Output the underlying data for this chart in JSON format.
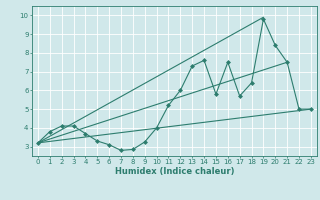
{
  "x": [
    0,
    1,
    2,
    3,
    4,
    5,
    6,
    7,
    8,
    9,
    10,
    11,
    12,
    13,
    14,
    15,
    16,
    17,
    18,
    19,
    20,
    21,
    22,
    23
  ],
  "y_zigzag": [
    3.2,
    3.8,
    4.1,
    4.1,
    3.7,
    3.3,
    3.1,
    2.8,
    2.85,
    3.25,
    4.0,
    5.2,
    6.0,
    7.3,
    7.6,
    5.8,
    7.5,
    5.7,
    6.4,
    9.8,
    8.4,
    7.5,
    5.0,
    5.0
  ],
  "trend1_x": [
    0,
    23
  ],
  "trend1_y": [
    3.2,
    5.0
  ],
  "trend2_x": [
    0,
    19
  ],
  "trend2_y": [
    3.2,
    9.9
  ],
  "trend3_x": [
    0,
    21
  ],
  "trend3_y": [
    3.2,
    7.5
  ],
  "line_color": "#2d7d6e",
  "bg_color": "#d0e8ea",
  "grid_color": "#b8d4d8",
  "xlabel": "Humidex (Indice chaleur)",
  "ylim": [
    2.5,
    10.5
  ],
  "xlim": [
    -0.5,
    23.5
  ],
  "yticks": [
    3,
    4,
    5,
    6,
    7,
    8,
    9,
    10
  ],
  "xticks": [
    0,
    1,
    2,
    3,
    4,
    5,
    6,
    7,
    8,
    9,
    10,
    11,
    12,
    13,
    14,
    15,
    16,
    17,
    18,
    19,
    20,
    21,
    22,
    23
  ],
  "tick_fontsize": 5.0,
  "xlabel_fontsize": 6.0,
  "line_width": 0.8,
  "marker_size": 4.0
}
